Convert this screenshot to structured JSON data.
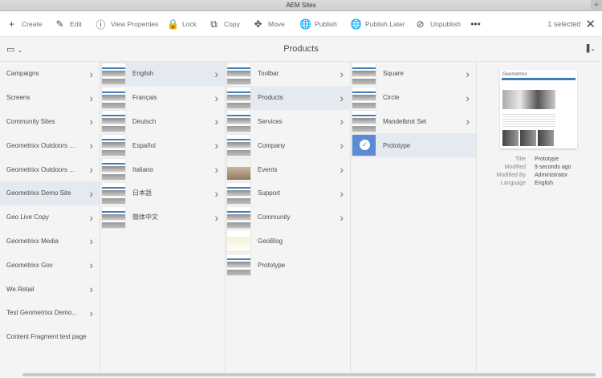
{
  "window": {
    "title": "AEM Sites",
    "new_tab": "+"
  },
  "toolbar": {
    "items": [
      {
        "icon": "plus-icon",
        "glyph": "+",
        "label": "Create"
      },
      {
        "icon": "pencil-icon",
        "glyph": "✎",
        "label": "Edit"
      },
      {
        "icon": "info-icon",
        "glyph": "ⓘ",
        "label": "View Properties"
      },
      {
        "icon": "lock-icon",
        "glyph": "🔒",
        "label": "Lock"
      },
      {
        "icon": "copy-icon",
        "glyph": "⧉",
        "label": "Copy"
      },
      {
        "icon": "move-icon",
        "glyph": "✥",
        "label": "Move"
      },
      {
        "icon": "globe-icon",
        "glyph": "🌐",
        "label": "Publish"
      },
      {
        "icon": "globe-clock-icon",
        "glyph": "🌐",
        "label": "Publish Later"
      },
      {
        "icon": "globe-off-icon",
        "glyph": "⊘",
        "label": "Unpublish"
      },
      {
        "icon": "more-icon",
        "glyph": "•••",
        "label": ""
      }
    ],
    "selection": "1 selected",
    "close": "✕"
  },
  "header": {
    "title": "Products",
    "rail_toggle": "▭",
    "view": "|||",
    "chevron": "⌄"
  },
  "columns": [
    {
      "items": [
        {
          "label": "Campaigns",
          "has_children": true
        },
        {
          "label": "Screens",
          "has_children": true
        },
        {
          "label": "Community Sites",
          "has_children": true
        },
        {
          "label": "Geometrixx Outdoors ...",
          "has_children": true
        },
        {
          "label": "Geometrixx Outdoors ...",
          "has_children": true
        },
        {
          "label": "Geometrixx Demo Site",
          "has_children": true,
          "selected": true
        },
        {
          "label": "Geo Live Copy",
          "has_children": true
        },
        {
          "label": "Geometrixx Media",
          "has_children": true
        },
        {
          "label": "Geometrixx Gov",
          "has_children": true
        },
        {
          "label": "We.Retail",
          "has_children": true
        },
        {
          "label": "Test Geometrixx Demo...",
          "has_children": true
        },
        {
          "label": "Content Fragment test page",
          "has_children": false
        }
      ]
    },
    {
      "items": [
        {
          "label": "English",
          "selected": true
        },
        {
          "label": "Français"
        },
        {
          "label": "Deutsch"
        },
        {
          "label": "Español"
        },
        {
          "label": "Italiano"
        },
        {
          "label": "日本語"
        },
        {
          "label": "簡体中文"
        }
      ]
    },
    {
      "items": [
        {
          "label": "Toolbar",
          "has_children": true
        },
        {
          "label": "Products",
          "has_children": true,
          "selected": true
        },
        {
          "label": "Services",
          "has_children": true
        },
        {
          "label": "Company",
          "has_children": true
        },
        {
          "label": "Events",
          "has_children": true,
          "thumb": "events"
        },
        {
          "label": "Support",
          "has_children": true
        },
        {
          "label": "Community",
          "has_children": true
        },
        {
          "label": "GeoBlog",
          "has_children": false,
          "thumb": "blog"
        },
        {
          "label": "Prototype",
          "has_children": false
        }
      ]
    },
    {
      "items": [
        {
          "label": "Square",
          "has_children": true
        },
        {
          "label": "Circle",
          "has_children": true
        },
        {
          "label": "Mandelbrot Set",
          "has_children": true
        },
        {
          "label": "Prototype",
          "has_children": false,
          "selected": true,
          "checked": true
        }
      ]
    }
  ],
  "preview": {
    "brand": "Geometrixx",
    "meta": [
      {
        "key": "Title",
        "value": "Prototype"
      },
      {
        "key": "Modified",
        "value": "9 seconds ago"
      },
      {
        "key": "Modified By",
        "value": "Administrator"
      },
      {
        "key": "Language",
        "value": "English"
      }
    ]
  },
  "colors": {
    "selected_row": "#e5e9f0",
    "selected_thumb": "#5a8bd4",
    "nav_blue": "#3d7ebf"
  }
}
